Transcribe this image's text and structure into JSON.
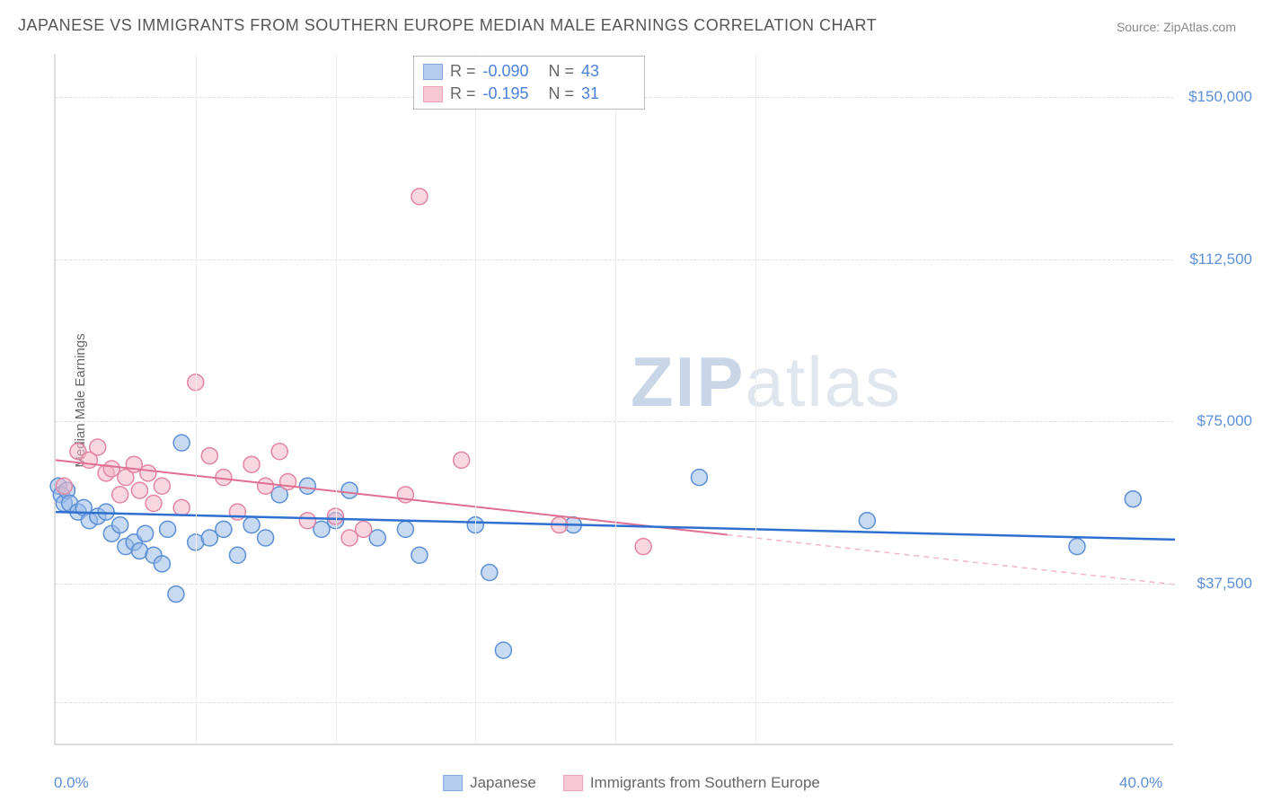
{
  "title": "JAPANESE VS IMMIGRANTS FROM SOUTHERN EUROPE MEDIAN MALE EARNINGS CORRELATION CHART",
  "source": "Source: ZipAtlas.com",
  "watermark": {
    "bold": "ZIP",
    "rest": "atlas"
  },
  "chart": {
    "type": "scatter",
    "ylabel": "Median Male Earnings",
    "x_range": [
      0,
      40
    ],
    "y_range": [
      0,
      160000
    ],
    "x_ticks": [
      {
        "v": 0,
        "label": "0.0%"
      },
      {
        "v": 40,
        "label": "40.0%"
      }
    ],
    "y_ticks": [
      {
        "v": 37500,
        "label": "$37,500"
      },
      {
        "v": 75000,
        "label": "$75,000"
      },
      {
        "v": 112500,
        "label": "$112,500"
      },
      {
        "v": 150000,
        "label": "$150,000"
      }
    ],
    "y_gridlines": [
      10000,
      37500,
      75000,
      112500,
      150000
    ],
    "x_minor_lines": [
      5,
      10,
      15,
      20,
      25
    ],
    "background_color": "#ffffff",
    "grid_color": "#dddddd",
    "marker_radius": 9,
    "marker_stroke_width": 1.5,
    "series": [
      {
        "id": "japanese",
        "name": "Japanese",
        "R": "-0.090",
        "N": "43",
        "fill": "#9bbce8",
        "stroke": "#5b8fd6",
        "fill_opacity": 0.55,
        "trend": {
          "m": -160,
          "b": 54000,
          "x0": 0,
          "x1": 40,
          "color": "#2f6fd0",
          "width": 2.5,
          "dash": ""
        },
        "points": [
          [
            0.1,
            60000
          ],
          [
            0.2,
            58000
          ],
          [
            0.3,
            56000
          ],
          [
            0.4,
            59000
          ],
          [
            0.5,
            56000
          ],
          [
            0.8,
            54000
          ],
          [
            1.0,
            55000
          ],
          [
            1.2,
            52000
          ],
          [
            1.5,
            53000
          ],
          [
            1.8,
            54000
          ],
          [
            2.0,
            49000
          ],
          [
            2.3,
            51000
          ],
          [
            2.5,
            46000
          ],
          [
            2.8,
            47000
          ],
          [
            3.0,
            45000
          ],
          [
            3.2,
            49000
          ],
          [
            3.5,
            44000
          ],
          [
            3.8,
            42000
          ],
          [
            4.0,
            50000
          ],
          [
            4.3,
            35000
          ],
          [
            4.5,
            70000
          ],
          [
            5.0,
            47000
          ],
          [
            5.5,
            48000
          ],
          [
            6.0,
            50000
          ],
          [
            6.5,
            44000
          ],
          [
            7.0,
            51000
          ],
          [
            7.5,
            48000
          ],
          [
            8.0,
            58000
          ],
          [
            9.0,
            60000
          ],
          [
            9.5,
            50000
          ],
          [
            10.0,
            52000
          ],
          [
            10.5,
            59000
          ],
          [
            11.5,
            48000
          ],
          [
            12.5,
            50000
          ],
          [
            13.0,
            44000
          ],
          [
            15.0,
            51000
          ],
          [
            15.5,
            40000
          ],
          [
            16.0,
            22000
          ],
          [
            18.5,
            51000
          ],
          [
            23.0,
            62000
          ],
          [
            29.0,
            52000
          ],
          [
            36.5,
            46000
          ],
          [
            38.5,
            57000
          ]
        ]
      },
      {
        "id": "immigrants",
        "name": "Immigrants from Southern Europe",
        "R": "-0.195",
        "N": "31",
        "fill": "#f2b6c6",
        "stroke": "#e286a1",
        "fill_opacity": 0.55,
        "trend": {
          "m": -720,
          "b": 66000,
          "x0": 0,
          "x1": 24,
          "color": "#de6f91",
          "width": 2,
          "dash": ""
        },
        "trend_ext": {
          "m": -720,
          "b": 66000,
          "x0": 24,
          "x1": 40,
          "color": "#f0b6c6",
          "width": 1.5,
          "dash": "6 5"
        },
        "points": [
          [
            0.3,
            60000
          ],
          [
            0.8,
            68000
          ],
          [
            1.2,
            66000
          ],
          [
            1.5,
            69000
          ],
          [
            1.8,
            63000
          ],
          [
            2.0,
            64000
          ],
          [
            2.3,
            58000
          ],
          [
            2.5,
            62000
          ],
          [
            2.8,
            65000
          ],
          [
            3.0,
            59000
          ],
          [
            3.3,
            63000
          ],
          [
            3.5,
            56000
          ],
          [
            3.8,
            60000
          ],
          [
            4.5,
            55000
          ],
          [
            5.0,
            84000
          ],
          [
            5.5,
            67000
          ],
          [
            6.0,
            62000
          ],
          [
            6.5,
            54000
          ],
          [
            7.0,
            65000
          ],
          [
            7.5,
            60000
          ],
          [
            8.0,
            68000
          ],
          [
            8.3,
            61000
          ],
          [
            9.0,
            52000
          ],
          [
            10.0,
            53000
          ],
          [
            10.5,
            48000
          ],
          [
            11.0,
            50000
          ],
          [
            12.5,
            58000
          ],
          [
            13.0,
            127000
          ],
          [
            14.5,
            66000
          ],
          [
            18.0,
            51000
          ],
          [
            21.0,
            46000
          ]
        ]
      }
    ]
  }
}
